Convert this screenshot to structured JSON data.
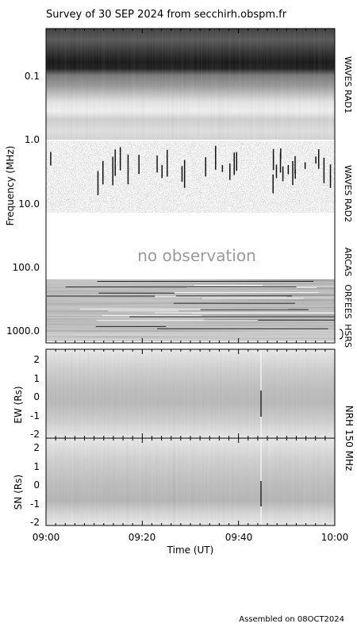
{
  "title": "Survey of 30 SEP 2024 from secchirh.obspm.fr",
  "footer": "Assembled on 08OCT2024",
  "x_axis": {
    "label": "Time (UT)",
    "ticks": [
      "09:00",
      "09:20",
      "09:40",
      "10:00"
    ]
  },
  "spectrogram": {
    "ylabel": "Frequency (MHz)",
    "y_ticks": [
      "0.1",
      "1.0",
      "10.0",
      "100.0",
      "1000.0"
    ],
    "no_obs_text": "no observation",
    "instruments": [
      "WAVES RAD1",
      "WAVES RAD2",
      "ARCAS",
      "ORFEES",
      "HSRS"
    ]
  },
  "ew_panel": {
    "ylabel": "EW (Rs)",
    "y_ticks": [
      "2",
      "1",
      "0",
      "-1",
      "-2"
    ]
  },
  "sn_panel": {
    "ylabel": "SN (Rs)",
    "y_ticks": [
      "2",
      "1",
      "0",
      "-1",
      "-2"
    ]
  },
  "nrh_label": "NRH 150 MHz",
  "chart_data": [
    {
      "type": "heatmap",
      "title": "Survey of 30 SEP 2024 from secchirh.obspm.fr",
      "xlabel": "Time (UT)",
      "ylabel": "Frequency (MHz)",
      "x_range": [
        "09:00",
        "10:00"
      ],
      "y_range": [
        0.02,
        2000
      ],
      "y_scale": "log",
      "y_direction": "down",
      "colormap": "grayscale",
      "bands": [
        {
          "name": "WAVES RAD1",
          "freq_range": [
            0.02,
            1.0
          ]
        },
        {
          "name": "WAVES RAD2",
          "freq_range": [
            1.0,
            13.5
          ]
        },
        {
          "name": "ARCAS",
          "freq_range": [
            13.5,
            150
          ],
          "annotation": "no observation"
        },
        {
          "name": "ORFEES",
          "freq_range": [
            150,
            1000
          ]
        },
        {
          "name": "HSRS",
          "freq_range": [
            1000,
            1300
          ]
        }
      ]
    },
    {
      "type": "heatmap",
      "title": "NRH 150 MHz",
      "xlabel": "Time (UT)",
      "ylabel": "EW (Rs)",
      "x_range": [
        "09:00",
        "10:00"
      ],
      "y_range": [
        -2.2,
        2.2
      ],
      "colormap": "grayscale"
    },
    {
      "type": "heatmap",
      "title": "NRH 150 MHz",
      "xlabel": "Time (UT)",
      "ylabel": "SN (Rs)",
      "x_range": [
        "09:00",
        "10:00"
      ],
      "y_range": [
        -2.2,
        2.2
      ],
      "colormap": "grayscale"
    }
  ]
}
